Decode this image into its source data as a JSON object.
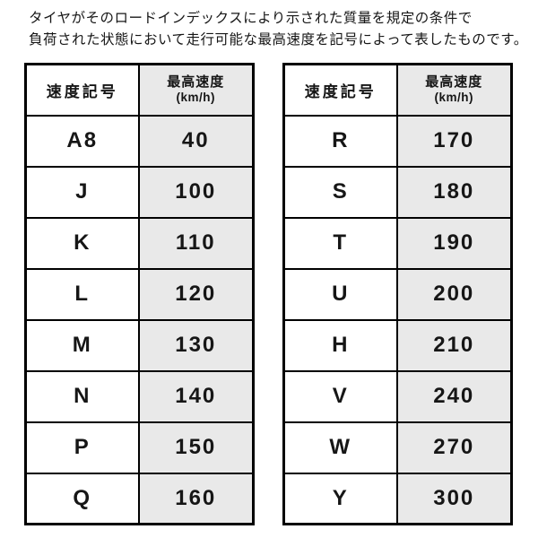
{
  "description": {
    "line1": "タイヤがそのロードインデックスにより示された質量を規定の条件で",
    "line2": "負荷された状態において走行可能な最高速度を記号によって表したものです。"
  },
  "tables": [
    {
      "header": {
        "symbol": "速度記号",
        "speed": "最高速度",
        "unit": "(km/h)"
      },
      "rows": [
        {
          "symbol": "A8",
          "speed": "40"
        },
        {
          "symbol": "J",
          "speed": "100"
        },
        {
          "symbol": "K",
          "speed": "110"
        },
        {
          "symbol": "L",
          "speed": "120"
        },
        {
          "symbol": "M",
          "speed": "130"
        },
        {
          "symbol": "N",
          "speed": "140"
        },
        {
          "symbol": "P",
          "speed": "150"
        },
        {
          "symbol": "Q",
          "speed": "160"
        }
      ]
    },
    {
      "header": {
        "symbol": "速度記号",
        "speed": "最高速度",
        "unit": "(km/h)"
      },
      "rows": [
        {
          "symbol": "R",
          "speed": "170"
        },
        {
          "symbol": "S",
          "speed": "180"
        },
        {
          "symbol": "T",
          "speed": "190"
        },
        {
          "symbol": "U",
          "speed": "200"
        },
        {
          "symbol": "H",
          "speed": "210"
        },
        {
          "symbol": "V",
          "speed": "240"
        },
        {
          "symbol": "W",
          "speed": "270"
        },
        {
          "symbol": "Y",
          "speed": "300"
        }
      ]
    }
  ],
  "colors": {
    "background": "#ffffff",
    "speed_column_bg": "#e9e9e9",
    "border": "#000000",
    "text": "#161616"
  }
}
